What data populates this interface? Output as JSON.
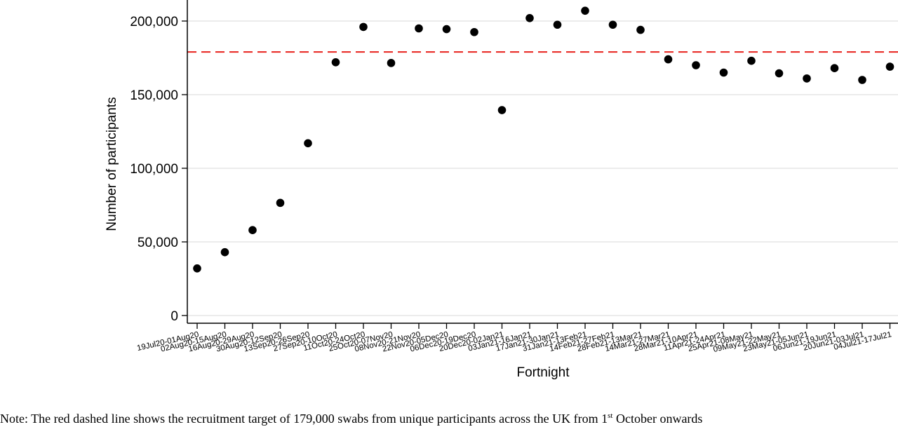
{
  "chart_data": {
    "type": "scatter",
    "xlabel": "Fortnight",
    "ylabel": "Number of participants",
    "ylim": [
      0,
      210000
    ],
    "y_ticks": [
      0,
      50000,
      100000,
      150000,
      200000
    ],
    "y_tick_labels": [
      "0",
      "50,000",
      "100,000",
      "150,000",
      "200,000"
    ],
    "grid": "horizontal",
    "categories": [
      "19Jul20-01Aug20",
      "02Aug20-15Aug20",
      "16Aug20-29Aug20",
      "30Aug20-12Sep20",
      "13Sep20-26Sep20",
      "27Sep20-10Oct20",
      "11Oct20-24Oct20",
      "25Oct20-07Nov20",
      "08Nov20-21Nov20",
      "22Nov20-05Dec20",
      "06Dec20-19Dec20",
      "20Dec20-02Jan21",
      "03Jan21-16Jan21",
      "17Jan21-30Jan21",
      "31Jan21-13Feb21",
      "14Feb21-27Feb21",
      "28Feb21-13Mar21",
      "14Mar21-27Mar21",
      "28Mar21-10Apr21",
      "11Apr21-24Apr21",
      "25Apr21-08May21",
      "09May21-22May21",
      "23May21-05Jun21",
      "06Jun21-19Jun21",
      "20Jun21-03Jul21",
      "04Jul21-17Jul21"
    ],
    "values": [
      32000,
      43000,
      58000,
      76500,
      117000,
      172000,
      196000,
      171500,
      195000,
      194500,
      192500,
      139500,
      202000,
      197500,
      207000,
      197500,
      194000,
      174000,
      170000,
      165000,
      173000,
      164500,
      161000,
      168000,
      160000,
      169000
    ],
    "reference_line": {
      "value": 179000,
      "color": "#e8211c",
      "style": "dashed"
    },
    "point_color": "#000000",
    "axis_color": "#000000",
    "grid_color": "#e0e0e0"
  },
  "note": {
    "prefix": "Note: The red dashed line shows the recruitment target of 179,000 swabs from unique participants across the UK from 1",
    "superscript": "st",
    "suffix": " October onwards"
  }
}
